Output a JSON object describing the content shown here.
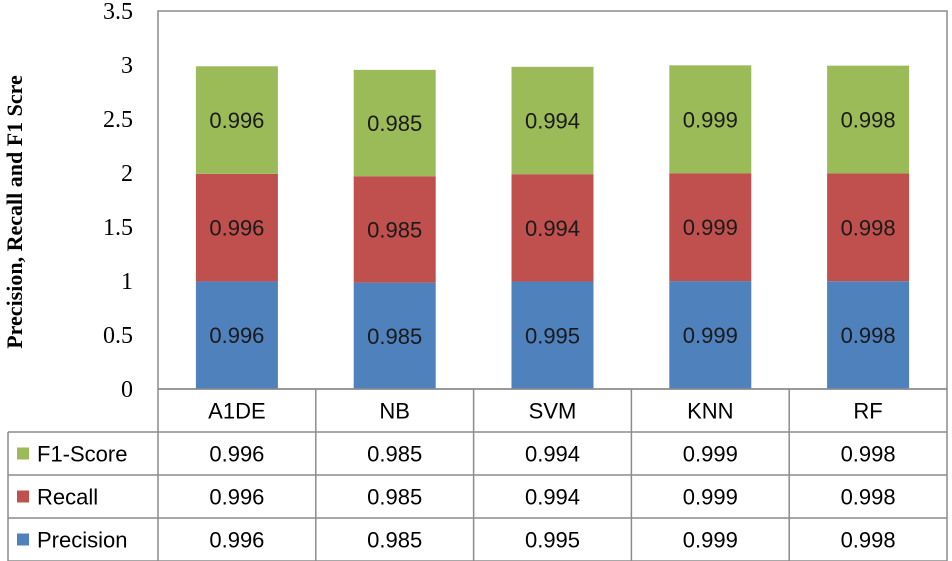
{
  "chart_data": {
    "type": "bar",
    "stacked": true,
    "ylabel": "Precision, Recall and F1 Scre",
    "ylim": [
      0,
      3.5
    ],
    "yticks": [
      "0",
      "0.5",
      "1",
      "1.5",
      "2",
      "2.5",
      "3",
      "3.5"
    ],
    "categories": [
      "A1DE",
      "NB",
      "SVM",
      "KNN",
      "RF"
    ],
    "grid": false,
    "legend": "data-table",
    "series": [
      {
        "name": "Precision",
        "color": "#4f81bd",
        "values": [
          0.996,
          0.985,
          0.995,
          0.999,
          0.998
        ]
      },
      {
        "name": "Recall",
        "color": "#c0504d",
        "values": [
          0.996,
          0.985,
          0.994,
          0.999,
          0.998
        ]
      },
      {
        "name": "F1-Score",
        "color": "#9bbb59",
        "values": [
          0.996,
          0.985,
          0.994,
          0.999,
          0.998
        ]
      }
    ],
    "table_row_order": [
      "F1-Score",
      "Recall",
      "Precision"
    ]
  }
}
